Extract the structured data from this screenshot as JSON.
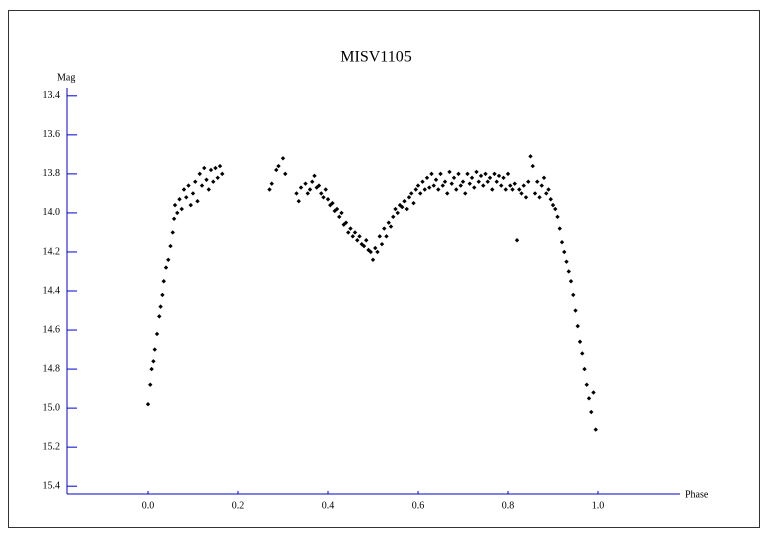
{
  "chart_data": {
    "type": "scatter",
    "title": "MISV1105",
    "ylabel": "Mag",
    "xlabel": "Phase",
    "xlim": [
      -0.18,
      1.18
    ],
    "ylim": [
      15.44,
      13.36
    ],
    "xticks": [
      {
        "value": 0,
        "label": "0.0"
      },
      0.2,
      0.4,
      0.6,
      0.8,
      {
        "value": 1,
        "label": "1.0"
      }
    ],
    "yticks": [
      13.4,
      13.6,
      13.8,
      {
        "value": 14,
        "label": "14.0"
      },
      14.2,
      14.4,
      14.6,
      14.8,
      {
        "value": 15,
        "label": "15.0"
      },
      15.2,
      15.4
    ],
    "color": "#000000",
    "x": [
      0.0,
      0.005,
      0.008,
      0.012,
      0.015,
      0.02,
      0.025,
      0.028,
      0.032,
      0.035,
      0.04,
      0.045,
      0.05,
      0.055,
      0.058,
      0.06,
      0.065,
      0.07,
      0.075,
      0.08,
      0.085,
      0.09,
      0.095,
      0.1,
      0.105,
      0.11,
      0.115,
      0.12,
      0.125,
      0.13,
      0.135,
      0.14,
      0.145,
      0.15,
      0.155,
      0.16,
      0.165,
      0.27,
      0.275,
      0.285,
      0.29,
      0.3,
      0.305,
      0.33,
      0.335,
      0.34,
      0.35,
      0.355,
      0.36,
      0.365,
      0.37,
      0.375,
      0.38,
      0.385,
      0.39,
      0.395,
      0.4,
      0.405,
      0.41,
      0.415,
      0.42,
      0.425,
      0.43,
      0.435,
      0.44,
      0.445,
      0.45,
      0.455,
      0.46,
      0.465,
      0.47,
      0.475,
      0.48,
      0.485,
      0.49,
      0.495,
      0.5,
      0.505,
      0.51,
      0.515,
      0.52,
      0.525,
      0.53,
      0.535,
      0.54,
      0.545,
      0.55,
      0.555,
      0.56,
      0.565,
      0.57,
      0.575,
      0.58,
      0.585,
      0.59,
      0.595,
      0.6,
      0.605,
      0.61,
      0.615,
      0.62,
      0.625,
      0.63,
      0.635,
      0.64,
      0.645,
      0.65,
      0.655,
      0.66,
      0.665,
      0.67,
      0.675,
      0.68,
      0.685,
      0.69,
      0.695,
      0.7,
      0.705,
      0.71,
      0.715,
      0.72,
      0.725,
      0.73,
      0.735,
      0.74,
      0.745,
      0.75,
      0.755,
      0.76,
      0.765,
      0.77,
      0.775,
      0.78,
      0.785,
      0.79,
      0.795,
      0.8,
      0.805,
      0.81,
      0.815,
      0.82,
      0.825,
      0.83,
      0.835,
      0.84,
      0.845,
      0.85,
      0.855,
      0.86,
      0.865,
      0.87,
      0.875,
      0.88,
      0.885,
      0.89,
      0.895,
      0.9,
      0.905,
      0.91,
      0.915,
      0.92,
      0.925,
      0.93,
      0.935,
      0.94,
      0.945,
      0.95,
      0.955,
      0.96,
      0.965,
      0.97,
      0.975,
      0.98,
      0.985,
      0.99,
      0.995
    ],
    "y": [
      14.98,
      14.88,
      14.8,
      14.76,
      14.7,
      14.62,
      14.53,
      14.48,
      14.42,
      14.35,
      14.28,
      14.24,
      14.17,
      14.1,
      14.03,
      13.96,
      14.0,
      13.93,
      13.98,
      13.88,
      13.92,
      13.86,
      13.96,
      13.9,
      13.84,
      13.94,
      13.8,
      13.86,
      13.77,
      13.83,
      13.88,
      13.78,
      13.84,
      13.77,
      13.82,
      13.76,
      13.8,
      13.88,
      13.85,
      13.78,
      13.76,
      13.72,
      13.8,
      13.9,
      13.94,
      13.87,
      13.85,
      13.9,
      13.88,
      13.84,
      13.81,
      13.87,
      13.86,
      13.9,
      13.92,
      13.88,
      13.93,
      13.96,
      13.95,
      13.99,
      13.98,
      14.02,
      14.0,
      14.06,
      14.05,
      14.1,
      14.08,
      14.12,
      14.1,
      14.14,
      14.12,
      14.16,
      14.17,
      14.14,
      14.19,
      14.2,
      14.24,
      14.18,
      14.2,
      14.12,
      14.16,
      14.08,
      14.12,
      14.05,
      14.07,
      14.02,
      13.98,
      14.0,
      13.96,
      13.97,
      13.94,
      13.98,
      13.92,
      13.9,
      13.95,
      13.88,
      13.86,
      13.9,
      13.84,
      13.88,
      13.82,
      13.87,
      13.8,
      13.86,
      13.83,
      13.88,
      13.8,
      13.86,
      13.84,
      13.9,
      13.79,
      13.85,
      13.82,
      13.88,
      13.8,
      13.86,
      13.84,
      13.9,
      13.8,
      13.85,
      13.82,
      13.87,
      13.79,
      13.84,
      13.81,
      13.86,
      13.8,
      13.84,
      13.82,
      13.88,
      13.8,
      13.84,
      13.81,
      13.86,
      13.82,
      13.88,
      13.8,
      13.86,
      13.88,
      13.85,
      14.14,
      13.88,
      13.9,
      13.86,
      13.92,
      13.84,
      13.71,
      13.76,
      13.9,
      13.84,
      13.92,
      13.86,
      13.82,
      13.9,
      13.88,
      13.93,
      13.96,
      13.98,
      14.02,
      14.08,
      14.15,
      14.2,
      14.25,
      14.3,
      14.35,
      14.42,
      14.5,
      14.58,
      14.66,
      14.72,
      14.8,
      14.88,
      14.95,
      15.02,
      14.92,
      15.11
    ]
  }
}
